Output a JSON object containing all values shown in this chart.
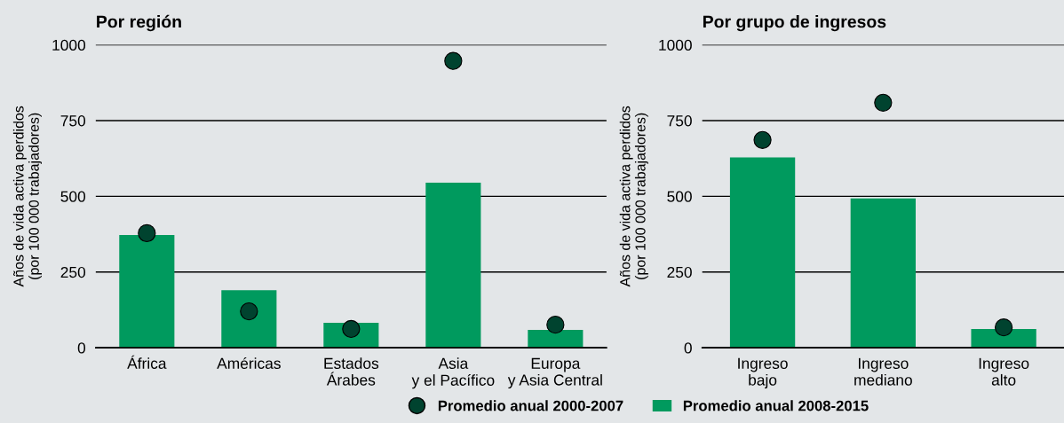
{
  "chart_data": [
    {
      "type": "bar",
      "title": "Por región",
      "ylabel": "Años de vida activa perdidos\n(por 100 000 trabajadores)",
      "categories": [
        "África",
        "Américas",
        "Estados\nÁrabes",
        "Asia\ny el Pacífico",
        "Europa\ny Asia Central"
      ],
      "ylim": [
        0,
        1000
      ],
      "yticks": [
        0,
        250,
        500,
        750,
        1000
      ],
      "grid": "y",
      "legend": "bottom",
      "series": [
        {
          "name": "Promedio anual 2000-2007",
          "type": "scatter",
          "color": "#00432f",
          "values": [
            378,
            120,
            62,
            947,
            76
          ]
        },
        {
          "name": "Promedio anual 2008-2015",
          "type": "bar",
          "color": "#009a5e",
          "values": [
            372,
            190,
            82,
            545,
            59
          ]
        }
      ]
    },
    {
      "type": "bar",
      "title": "Por grupo de ingresos",
      "ylabel": "Años de vida activa perdidos\n(por 100 000 trabajadores)",
      "categories": [
        "Ingreso\nbajo",
        "Ingreso\nmediano",
        "Ingreso\nalto"
      ],
      "ylim": [
        0,
        1000
      ],
      "yticks": [
        0,
        250,
        500,
        750,
        1000
      ],
      "grid": "y",
      "series": [
        {
          "type": "scatter",
          "color": "#00432f",
          "values": [
            686,
            809,
            67
          ]
        },
        {
          "type": "bar",
          "color": "#009a5e",
          "values": [
            628,
            493,
            62
          ]
        }
      ]
    }
  ]
}
